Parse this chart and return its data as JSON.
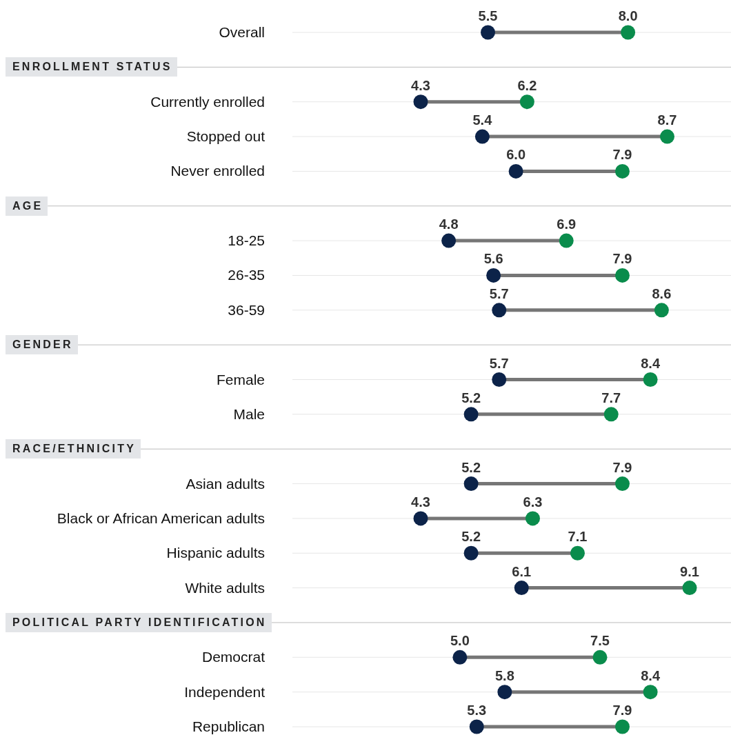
{
  "chart_data": {
    "type": "scatter",
    "orientation": "horizontal",
    "grid": "y",
    "categories": [
      "Overall",
      null,
      "Currently enrolled",
      "Stopped out",
      "Never enrolled",
      null,
      "18-25",
      "26-35",
      "36-59",
      null,
      "Female",
      "Male",
      null,
      "Asian adults",
      "Black or African American adults",
      "Hispanic adults",
      "White adults",
      null,
      "Democrat",
      "Independent",
      "Republican"
    ],
    "annotations": [
      "ENROLLMENT STATUS",
      "AGE",
      "GENDER",
      "RACE/ETHNICITY",
      "POLITICAL PARTY IDENTIFICATION"
    ],
    "series": [
      {
        "color": "#0c2349",
        "values": [
          5.5,
          null,
          4.3,
          5.4,
          6.0,
          null,
          4.8,
          5.6,
          5.7,
          null,
          5.7,
          5.2,
          null,
          5.2,
          4.3,
          5.2,
          6.1,
          null,
          5.0,
          5.8,
          5.3
        ],
        "value_labels": [
          "5.5",
          null,
          "4.3",
          "5.4",
          "6.0",
          null,
          "4.8",
          "5.6",
          "5.7",
          null,
          "5.7",
          "5.2",
          null,
          "5.2",
          "4.3",
          "5.2",
          "6.1",
          null,
          "5.0",
          "5.8",
          "5.3"
        ]
      },
      {
        "color": "#0a8c4c",
        "values": [
          8.0,
          null,
          6.2,
          8.7,
          7.9,
          null,
          6.9,
          7.9,
          8.6,
          null,
          8.4,
          7.7,
          null,
          7.9,
          6.3,
          7.1,
          9.1,
          null,
          7.5,
          8.4,
          7.9
        ],
        "value_labels": [
          "8.0",
          null,
          "6.2",
          "8.7",
          "7.9",
          null,
          "6.9",
          "7.9",
          "8.6",
          null,
          "8.4",
          "7.7",
          null,
          "7.9",
          "6.3",
          "7.1",
          "9.1",
          null,
          "7.5",
          "8.4",
          "7.9"
        ]
      }
    ]
  }
}
